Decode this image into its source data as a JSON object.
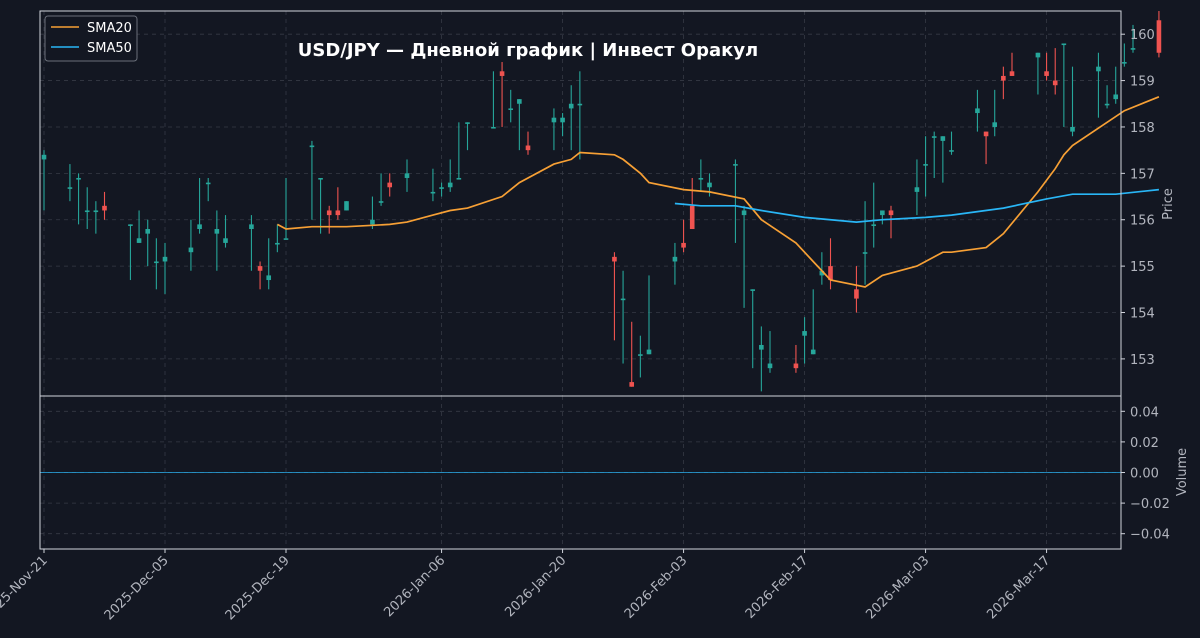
{
  "chart_data": {
    "type": "candlestick",
    "title": "USD/JPY  —  Дневной график  |  Инвест Оракул",
    "price_axis_label": "Price",
    "volume_axis_label": "Volume",
    "price_ylim": [
      152.2,
      160.5
    ],
    "price_ticks": [
      "153",
      "154",
      "155",
      "156",
      "157",
      "158",
      "159",
      "160"
    ],
    "volume_ylim": [
      -0.05,
      0.05
    ],
    "volume_ticks": [
      "0.04",
      "0.02",
      "0.00",
      "−0.02",
      "−0.04"
    ],
    "x_ticks": [
      {
        "date": "2025-Nov-21",
        "label": "2025-Nov-21"
      },
      {
        "date": "2025-Dec-05",
        "label": "2025-Dec-05"
      },
      {
        "date": "2025-Dec-19",
        "label": "2025-Dec-19"
      },
      {
        "date": "2026-Jan-06",
        "label": "2026-Jan-06"
      },
      {
        "date": "2026-Jan-20",
        "label": "2026-Jan-20"
      },
      {
        "date": "2026-Feb-03",
        "label": "2026-Feb-03"
      },
      {
        "date": "2026-Feb-17",
        "label": "2026-Feb-17"
      },
      {
        "date": "2026-Mar-03",
        "label": "2026-Mar-03"
      },
      {
        "date": "2026-Mar-17",
        "label": "2026-Mar-17"
      }
    ],
    "grid": true,
    "legend_position": "top-left",
    "colors": {
      "background": "#131722",
      "up": "#26a69a",
      "down": "#ef5350",
      "sma20": "#f7a035",
      "sma50": "#29b6f6",
      "grid": "#363a45",
      "frame": "#d1d4dc"
    },
    "series": [
      {
        "name": "SMA20",
        "color": "#f7a035"
      },
      {
        "name": "SMA50",
        "color": "#29b6f6"
      }
    ],
    "candles": [
      {
        "date": "2025-Nov-21",
        "o": 157.3,
        "h": 157.5,
        "l": 156.2,
        "c": 157.4
      },
      {
        "date": "2025-Nov-24",
        "o": 156.7,
        "h": 157.2,
        "l": 156.4,
        "c": 156.7
      },
      {
        "date": "2025-Nov-25",
        "o": 156.9,
        "h": 157.0,
        "l": 155.9,
        "c": 156.9
      },
      {
        "date": "2025-Nov-26",
        "o": 156.2,
        "h": 156.7,
        "l": 155.8,
        "c": 156.2
      },
      {
        "date": "2025-Nov-27",
        "o": 156.2,
        "h": 156.4,
        "l": 155.7,
        "c": 156.2
      },
      {
        "date": "2025-Nov-28",
        "o": 156.3,
        "h": 156.6,
        "l": 156.0,
        "c": 156.2
      },
      {
        "date": "2025-Dec-01",
        "o": 155.9,
        "h": 155.9,
        "l": 154.7,
        "c": 155.9
      },
      {
        "date": "2025-Dec-02",
        "o": 155.5,
        "h": 156.2,
        "l": 155.5,
        "c": 155.6
      },
      {
        "date": "2025-Dec-03",
        "o": 155.7,
        "h": 156.0,
        "l": 155.0,
        "c": 155.8
      },
      {
        "date": "2025-Dec-04",
        "o": 155.1,
        "h": 155.6,
        "l": 154.5,
        "c": 155.1
      },
      {
        "date": "2025-Dec-05",
        "o": 155.1,
        "h": 155.5,
        "l": 154.4,
        "c": 155.2
      },
      {
        "date": "2025-Dec-08",
        "o": 155.3,
        "h": 156.0,
        "l": 154.9,
        "c": 155.4
      },
      {
        "date": "2025-Dec-09",
        "o": 155.8,
        "h": 156.9,
        "l": 155.7,
        "c": 155.9
      },
      {
        "date": "2025-Dec-10",
        "o": 156.8,
        "h": 156.9,
        "l": 156.4,
        "c": 156.8
      },
      {
        "date": "2025-Dec-11",
        "o": 155.7,
        "h": 156.2,
        "l": 154.9,
        "c": 155.8
      },
      {
        "date": "2025-Dec-12",
        "o": 155.5,
        "h": 156.1,
        "l": 155.4,
        "c": 155.6
      },
      {
        "date": "2025-Dec-15",
        "o": 155.8,
        "h": 156.1,
        "l": 154.9,
        "c": 155.9
      },
      {
        "date": "2025-Dec-16",
        "o": 155.0,
        "h": 155.1,
        "l": 154.5,
        "c": 154.9
      },
      {
        "date": "2025-Dec-17",
        "o": 154.7,
        "h": 155.6,
        "l": 154.5,
        "c": 154.8
      },
      {
        "date": "2025-Dec-18",
        "o": 155.5,
        "h": 155.9,
        "l": 155.3,
        "c": 155.5
      },
      {
        "date": "2025-Dec-19",
        "o": 155.6,
        "h": 156.9,
        "l": 155.6,
        "c": 155.6
      },
      {
        "date": "2025-Dec-22",
        "o": 157.6,
        "h": 157.7,
        "l": 156.0,
        "c": 157.6
      },
      {
        "date": "2025-Dec-23",
        "o": 156.9,
        "h": 156.9,
        "l": 155.7,
        "c": 156.9
      },
      {
        "date": "2025-Dec-24",
        "o": 156.2,
        "h": 156.3,
        "l": 155.7,
        "c": 156.1
      },
      {
        "date": "2025-Dec-25",
        "o": 156.2,
        "h": 156.7,
        "l": 156.0,
        "c": 156.1
      },
      {
        "date": "2025-Dec-26",
        "o": 156.2,
        "h": 156.4,
        "l": 156.2,
        "c": 156.4
      },
      {
        "date": "2025-Dec-29",
        "o": 155.9,
        "h": 156.5,
        "l": 155.8,
        "c": 156.0
      },
      {
        "date": "2025-Dec-30",
        "o": 156.4,
        "h": 157.0,
        "l": 156.3,
        "c": 156.4
      },
      {
        "date": "2025-Dec-31",
        "o": 156.8,
        "h": 157.0,
        "l": 156.5,
        "c": 156.7
      },
      {
        "date": "2026-Jan-02",
        "o": 156.9,
        "h": 157.3,
        "l": 156.6,
        "c": 157.0
      },
      {
        "date": "2026-Jan-05",
        "o": 156.6,
        "h": 157.1,
        "l": 156.4,
        "c": 156.6
      },
      {
        "date": "2026-Jan-06",
        "o": 156.7,
        "h": 156.8,
        "l": 156.5,
        "c": 156.7
      },
      {
        "date": "2026-Jan-07",
        "o": 156.7,
        "h": 157.3,
        "l": 156.6,
        "c": 156.8
      },
      {
        "date": "2026-Jan-08",
        "o": 156.9,
        "h": 158.1,
        "l": 156.9,
        "c": 156.9
      },
      {
        "date": "2026-Jan-09",
        "o": 158.1,
        "h": 158.1,
        "l": 157.5,
        "c": 158.1
      },
      {
        "date": "2026-Jan-12",
        "o": 158.0,
        "h": 159.2,
        "l": 158.0,
        "c": 158.0
      },
      {
        "date": "2026-Jan-13",
        "o": 159.2,
        "h": 159.4,
        "l": 158.0,
        "c": 159.1
      },
      {
        "date": "2026-Jan-14",
        "o": 158.4,
        "h": 158.8,
        "l": 158.1,
        "c": 158.4
      },
      {
        "date": "2026-Jan-15",
        "o": 158.5,
        "h": 158.6,
        "l": 157.5,
        "c": 158.6
      },
      {
        "date": "2026-Jan-16",
        "o": 157.6,
        "h": 157.9,
        "l": 157.4,
        "c": 157.5
      },
      {
        "date": "2026-Jan-19",
        "o": 158.1,
        "h": 158.4,
        "l": 157.5,
        "c": 158.2
      },
      {
        "date": "2026-Jan-20",
        "o": 158.1,
        "h": 158.3,
        "l": 157.8,
        "c": 158.2
      },
      {
        "date": "2026-Jan-21",
        "o": 158.4,
        "h": 158.9,
        "l": 157.5,
        "c": 158.5
      },
      {
        "date": "2026-Jan-22",
        "o": 158.5,
        "h": 159.2,
        "l": 157.3,
        "c": 158.5
      },
      {
        "date": "2026-Jan-26",
        "o": 155.2,
        "h": 155.3,
        "l": 153.4,
        "c": 155.1
      },
      {
        "date": "2026-Jan-27",
        "o": 154.3,
        "h": 154.9,
        "l": 152.9,
        "c": 154.3
      },
      {
        "date": "2026-Jan-28",
        "o": 152.5,
        "h": 153.8,
        "l": 152.4,
        "c": 152.4
      },
      {
        "date": "2026-Jan-29",
        "o": 153.1,
        "h": 153.5,
        "l": 152.6,
        "c": 153.1
      },
      {
        "date": "2026-Jan-30",
        "o": 153.1,
        "h": 154.8,
        "l": 153.1,
        "c": 153.2
      },
      {
        "date": "2026-Feb-02",
        "o": 155.1,
        "h": 155.5,
        "l": 154.6,
        "c": 155.2
      },
      {
        "date": "2026-Feb-03",
        "o": 155.5,
        "h": 156.0,
        "l": 155.3,
        "c": 155.4
      },
      {
        "date": "2026-Feb-04",
        "o": 156.3,
        "h": 156.9,
        "l": 155.8,
        "c": 155.8
      },
      {
        "date": "2026-Feb-05",
        "o": 156.9,
        "h": 157.3,
        "l": 156.6,
        "c": 156.9
      },
      {
        "date": "2026-Feb-06",
        "o": 156.7,
        "h": 157.0,
        "l": 156.5,
        "c": 156.8
      },
      {
        "date": "2026-Feb-09",
        "o": 157.2,
        "h": 157.3,
        "l": 155.5,
        "c": 157.2
      },
      {
        "date": "2026-Feb-10",
        "o": 156.1,
        "h": 156.3,
        "l": 154.1,
        "c": 156.2
      },
      {
        "date": "2026-Feb-11",
        "o": 154.5,
        "h": 154.5,
        "l": 152.8,
        "c": 154.5
      },
      {
        "date": "2026-Feb-12",
        "o": 153.2,
        "h": 153.7,
        "l": 152.3,
        "c": 153.3
      },
      {
        "date": "2026-Feb-13",
        "o": 152.8,
        "h": 153.6,
        "l": 152.7,
        "c": 152.9
      },
      {
        "date": "2026-Feb-16",
        "o": 152.9,
        "h": 153.3,
        "l": 152.7,
        "c": 152.8
      },
      {
        "date": "2026-Feb-17",
        "o": 153.5,
        "h": 153.9,
        "l": 152.9,
        "c": 153.6
      },
      {
        "date": "2026-Feb-18",
        "o": 153.1,
        "h": 154.5,
        "l": 153.1,
        "c": 153.2
      },
      {
        "date": "2026-Feb-19",
        "o": 154.8,
        "h": 155.3,
        "l": 154.6,
        "c": 154.9
      },
      {
        "date": "2026-Feb-20",
        "o": 155.0,
        "h": 155.6,
        "l": 154.5,
        "c": 154.7
      },
      {
        "date": "2026-Feb-23",
        "o": 154.5,
        "h": 155.0,
        "l": 154.0,
        "c": 154.3
      },
      {
        "date": "2026-Feb-24",
        "o": 155.3,
        "h": 156.4,
        "l": 154.6,
        "c": 155.3
      },
      {
        "date": "2026-Feb-25",
        "o": 155.9,
        "h": 156.8,
        "l": 155.4,
        "c": 155.9
      },
      {
        "date": "2026-Feb-26",
        "o": 156.1,
        "h": 156.2,
        "l": 155.9,
        "c": 156.2
      },
      {
        "date": "2026-Feb-27",
        "o": 156.2,
        "h": 156.3,
        "l": 155.6,
        "c": 156.1
      },
      {
        "date": "2026-Mar-02",
        "o": 156.6,
        "h": 157.3,
        "l": 156.1,
        "c": 156.7
      },
      {
        "date": "2026-Mar-03",
        "o": 157.2,
        "h": 157.8,
        "l": 156.5,
        "c": 157.2
      },
      {
        "date": "2026-Mar-04",
        "o": 157.8,
        "h": 157.9,
        "l": 156.9,
        "c": 157.8
      },
      {
        "date": "2026-Mar-05",
        "o": 157.7,
        "h": 157.8,
        "l": 156.8,
        "c": 157.8
      },
      {
        "date": "2026-Mar-06",
        "o": 157.5,
        "h": 157.9,
        "l": 157.4,
        "c": 157.5
      },
      {
        "date": "2026-Mar-09",
        "o": 158.3,
        "h": 158.8,
        "l": 157.9,
        "c": 158.4
      },
      {
        "date": "2026-Mar-10",
        "o": 157.9,
        "h": 157.9,
        "l": 157.2,
        "c": 157.8
      },
      {
        "date": "2026-Mar-11",
        "o": 158.0,
        "h": 158.8,
        "l": 157.8,
        "c": 158.1
      },
      {
        "date": "2026-Mar-12",
        "o": 159.1,
        "h": 159.3,
        "l": 158.6,
        "c": 159.0
      },
      {
        "date": "2026-Mar-13",
        "o": 159.2,
        "h": 159.6,
        "l": 159.1,
        "c": 159.1
      },
      {
        "date": "2026-Mar-16",
        "o": 159.5,
        "h": 159.6,
        "l": 158.7,
        "c": 159.6
      },
      {
        "date": "2026-Mar-17",
        "o": 159.2,
        "h": 159.6,
        "l": 159.0,
        "c": 159.1
      },
      {
        "date": "2026-Mar-18",
        "o": 159.0,
        "h": 159.7,
        "l": 158.7,
        "c": 158.9
      },
      {
        "date": "2026-Mar-19",
        "o": 159.8,
        "h": 159.8,
        "l": 158.0,
        "c": 159.8
      },
      {
        "date": "2026-Mar-20",
        "o": 157.9,
        "h": 159.3,
        "l": 157.8,
        "c": 158.0
      },
      {
        "date": "2026-Mar-23",
        "o": 159.2,
        "h": 159.6,
        "l": 158.2,
        "c": 159.3
      },
      {
        "date": "2026-Mar-24",
        "o": 158.5,
        "h": 158.9,
        "l": 158.4,
        "c": 158.5
      },
      {
        "date": "2026-Mar-25",
        "o": 158.6,
        "h": 159.3,
        "l": 158.5,
        "c": 158.7
      },
      {
        "date": "2026-Mar-26",
        "o": 159.4,
        "h": 159.8,
        "l": 159.3,
        "c": 159.4
      },
      {
        "date": "2026-Mar-27",
        "o": 159.7,
        "h": 160.2,
        "l": 159.6,
        "c": 159.7
      },
      {
        "date": "2026-Mar-30",
        "o": 160.3,
        "h": 160.5,
        "l": 159.5,
        "c": 159.6
      }
    ],
    "sma20": [
      {
        "date": "2025-Dec-18",
        "v": 155.9
      },
      {
        "date": "2025-Dec-19",
        "v": 155.8
      },
      {
        "date": "2025-Dec-22",
        "v": 155.85
      },
      {
        "date": "2025-Dec-26",
        "v": 155.85
      },
      {
        "date": "2025-Dec-31",
        "v": 155.9
      },
      {
        "date": "2026-Jan-02",
        "v": 155.95
      },
      {
        "date": "2026-Jan-05",
        "v": 156.1
      },
      {
        "date": "2026-Jan-07",
        "v": 156.2
      },
      {
        "date": "2026-Jan-09",
        "v": 156.25
      },
      {
        "date": "2026-Jan-13",
        "v": 156.5
      },
      {
        "date": "2026-Jan-15",
        "v": 156.8
      },
      {
        "date": "2026-Jan-19",
        "v": 157.2
      },
      {
        "date": "2026-Jan-21",
        "v": 157.3
      },
      {
        "date": "2026-Jan-22",
        "v": 157.45
      },
      {
        "date": "2026-Jan-26",
        "v": 157.4
      },
      {
        "date": "2026-Jan-27",
        "v": 157.3
      },
      {
        "date": "2026-Jan-29",
        "v": 157.0
      },
      {
        "date": "2026-Jan-30",
        "v": 156.8
      },
      {
        "date": "2026-Feb-03",
        "v": 156.65
      },
      {
        "date": "2026-Feb-06",
        "v": 156.6
      },
      {
        "date": "2026-Feb-10",
        "v": 156.45
      },
      {
        "date": "2026-Feb-12",
        "v": 156.0
      },
      {
        "date": "2026-Feb-16",
        "v": 155.5
      },
      {
        "date": "2026-Feb-18",
        "v": 155.1
      },
      {
        "date": "2026-Feb-20",
        "v": 154.7
      },
      {
        "date": "2026-Feb-24",
        "v": 154.55
      },
      {
        "date": "2026-Feb-26",
        "v": 154.8
      },
      {
        "date": "2026-Mar-02",
        "v": 155.0
      },
      {
        "date": "2026-Mar-05",
        "v": 155.3
      },
      {
        "date": "2026-Mar-06",
        "v": 155.3
      },
      {
        "date": "2026-Mar-10",
        "v": 155.4
      },
      {
        "date": "2026-Mar-12",
        "v": 155.7
      },
      {
        "date": "2026-Mar-16",
        "v": 156.6
      },
      {
        "date": "2026-Mar-18",
        "v": 157.1
      },
      {
        "date": "2026-Mar-19",
        "v": 157.4
      },
      {
        "date": "2026-Mar-20",
        "v": 157.6
      },
      {
        "date": "2026-Mar-24",
        "v": 158.1
      },
      {
        "date": "2026-Mar-26",
        "v": 158.35
      },
      {
        "date": "2026-Mar-30",
        "v": 158.65
      }
    ],
    "sma50": [
      {
        "date": "2026-Feb-02",
        "v": 156.35
      },
      {
        "date": "2026-Feb-05",
        "v": 156.3
      },
      {
        "date": "2026-Feb-09",
        "v": 156.3
      },
      {
        "date": "2026-Feb-12",
        "v": 156.2
      },
      {
        "date": "2026-Feb-17",
        "v": 156.05
      },
      {
        "date": "2026-Feb-23",
        "v": 155.95
      },
      {
        "date": "2026-Feb-26",
        "v": 156.0
      },
      {
        "date": "2026-Mar-03",
        "v": 156.05
      },
      {
        "date": "2026-Mar-06",
        "v": 156.1
      },
      {
        "date": "2026-Mar-12",
        "v": 156.25
      },
      {
        "date": "2026-Mar-17",
        "v": 156.45
      },
      {
        "date": "2026-Mar-20",
        "v": 156.55
      },
      {
        "date": "2026-Mar-25",
        "v": 156.55
      },
      {
        "date": "2026-Mar-30",
        "v": 156.65
      }
    ],
    "volume": [
      0,
      0
    ]
  }
}
